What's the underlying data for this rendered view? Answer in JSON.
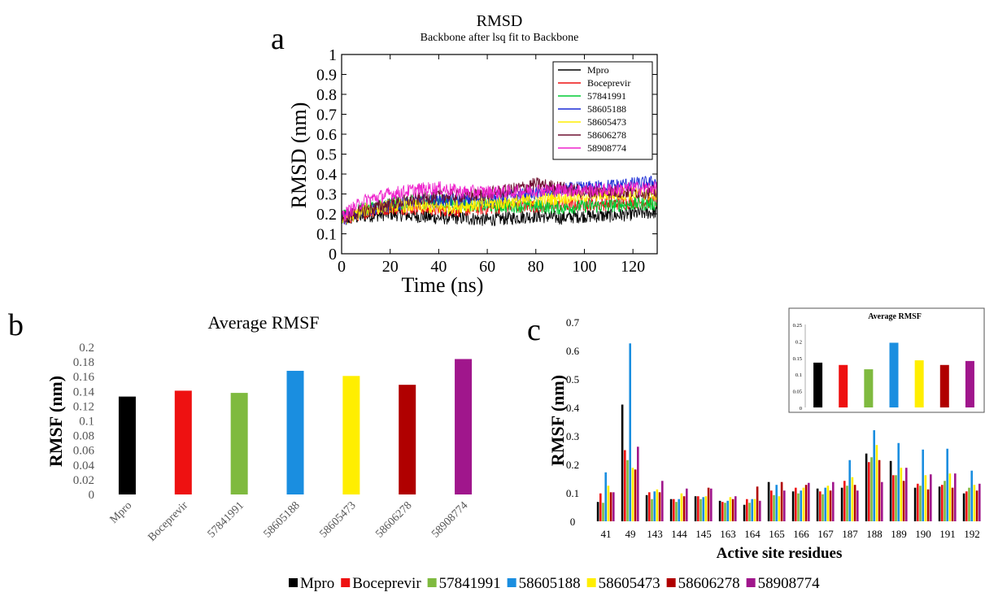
{
  "panels": {
    "a_label": "a",
    "b_label": "b",
    "c_label": "c"
  },
  "colors": {
    "Mpro": "#000000",
    "Boceprevir": "#ee1111",
    "57841991": "#7fba3f",
    "58605188": "#1a8ee0",
    "58605473": "#ffee00",
    "58606278": "#b00000",
    "58908774": "#a0168c"
  },
  "chart_data": [
    {
      "id": "a",
      "type": "line",
      "title": "RMSD",
      "subtitle": "Backbone after lsq fit to Backbone",
      "xlabel": "Time (ns)",
      "ylabel": "RMSD (nm)",
      "xlim": [
        0,
        130
      ],
      "ylim": [
        0,
        1
      ],
      "xticks": [
        "0",
        "20",
        "40",
        "60",
        "80",
        "100",
        "120"
      ],
      "yticks": [
        "0",
        "0.1",
        "0.2",
        "0.3",
        "0.4",
        "0.5",
        "0.6",
        "0.7",
        "0.8",
        "0.9",
        "1"
      ],
      "legend_position": "top-right",
      "grid": false,
      "series": [
        {
          "name": "Mpro",
          "color": "#000000",
          "line_color": "#000000",
          "x": [
            0,
            10,
            20,
            30,
            40,
            50,
            60,
            70,
            80,
            90,
            100,
            110,
            120,
            130
          ],
          "values": [
            0.17,
            0.19,
            0.2,
            0.19,
            0.18,
            0.18,
            0.17,
            0.18,
            0.19,
            0.18,
            0.19,
            0.19,
            0.2,
            0.21
          ]
        },
        {
          "name": "Boceprevir",
          "color": "#ee1111",
          "line_color": "#ee1111",
          "x": [
            0,
            10,
            20,
            30,
            40,
            50,
            60,
            70,
            80,
            90,
            100,
            110,
            120,
            130
          ],
          "values": [
            0.17,
            0.21,
            0.23,
            0.23,
            0.22,
            0.22,
            0.23,
            0.24,
            0.24,
            0.24,
            0.25,
            0.25,
            0.26,
            0.26
          ]
        },
        {
          "name": "57841991",
          "color": "#00cc33",
          "line_color": "#00cc33",
          "x": [
            0,
            10,
            20,
            30,
            40,
            50,
            60,
            70,
            80,
            90,
            100,
            110,
            120,
            130
          ],
          "values": [
            0.18,
            0.23,
            0.25,
            0.26,
            0.26,
            0.25,
            0.24,
            0.24,
            0.24,
            0.23,
            0.24,
            0.24,
            0.25,
            0.25
          ]
        },
        {
          "name": "58605188",
          "color": "#1a2bd6",
          "line_color": "#1a2bd6",
          "x": [
            0,
            10,
            20,
            30,
            40,
            50,
            60,
            70,
            80,
            90,
            100,
            110,
            120,
            130
          ],
          "values": [
            0.17,
            0.22,
            0.24,
            0.26,
            0.27,
            0.27,
            0.28,
            0.29,
            0.3,
            0.32,
            0.33,
            0.34,
            0.35,
            0.36
          ]
        },
        {
          "name": "58605473",
          "color": "#ffee00",
          "line_color": "#ffee00",
          "x": [
            0,
            10,
            20,
            30,
            40,
            50,
            60,
            70,
            80,
            90,
            100,
            110,
            120,
            130
          ],
          "values": [
            0.17,
            0.22,
            0.24,
            0.24,
            0.23,
            0.24,
            0.25,
            0.26,
            0.27,
            0.28,
            0.29,
            0.3,
            0.3,
            0.3
          ]
        },
        {
          "name": "58606278",
          "color": "#6e1030",
          "line_color": "#6e1030",
          "x": [
            0,
            10,
            20,
            30,
            40,
            50,
            60,
            70,
            80,
            90,
            100,
            110,
            120,
            130
          ],
          "values": [
            0.18,
            0.22,
            0.25,
            0.27,
            0.29,
            0.29,
            0.3,
            0.32,
            0.35,
            0.33,
            0.31,
            0.31,
            0.31,
            0.31
          ]
        },
        {
          "name": "58908774",
          "color": "#ee22cc",
          "line_color": "#ee22cc",
          "x": [
            0,
            10,
            20,
            30,
            40,
            50,
            60,
            70,
            80,
            90,
            100,
            110,
            120,
            130
          ],
          "values": [
            0.19,
            0.27,
            0.3,
            0.32,
            0.33,
            0.31,
            0.31,
            0.31,
            0.32,
            0.32,
            0.32,
            0.32,
            0.33,
            0.33
          ]
        }
      ]
    },
    {
      "id": "b",
      "type": "bar",
      "title": "Average RMSF",
      "xlabel": "",
      "ylabel": "RMSF (nm)",
      "ylim": [
        0,
        0.2
      ],
      "yticks": [
        "0",
        "0.02",
        "0.04",
        "0.06",
        "0.08",
        "0.1",
        "0.12",
        "0.14",
        "0.16",
        "0.18",
        "0.2"
      ],
      "categories": [
        "Mpro",
        "Boceprevir",
        "57841991",
        "58605188",
        "58605473",
        "58606278",
        "58908774"
      ],
      "values": [
        0.133,
        0.141,
        0.138,
        0.168,
        0.161,
        0.149,
        0.184
      ],
      "grid": false
    },
    {
      "id": "c",
      "type": "bar",
      "xlabel": "Active site residues",
      "ylabel": "RMSF (nm)",
      "ylim": [
        0,
        0.7
      ],
      "yticks": [
        "0",
        "0.1",
        "0.2",
        "0.3",
        "0.4",
        "0.5",
        "0.6",
        "0.7"
      ],
      "categories": [
        "41",
        "49",
        "143",
        "144",
        "145",
        "163",
        "164",
        "165",
        "166",
        "167",
        "187",
        "188",
        "189",
        "190",
        "191",
        "192"
      ],
      "series": [
        {
          "name": "Mpro",
          "values": [
            0.068,
            0.41,
            0.092,
            0.078,
            0.088,
            0.072,
            0.058,
            0.138,
            0.105,
            0.115,
            0.118,
            0.238,
            0.212,
            0.118,
            0.122,
            0.098
          ]
        },
        {
          "name": "Boceprevir",
          "values": [
            0.098,
            0.25,
            0.102,
            0.078,
            0.088,
            0.068,
            0.078,
            0.108,
            0.118,
            0.105,
            0.142,
            0.208,
            0.162,
            0.132,
            0.128,
            0.105
          ]
        },
        {
          "name": "57841991",
          "values": [
            0.065,
            0.215,
            0.078,
            0.068,
            0.078,
            0.065,
            0.065,
            0.092,
            0.098,
            0.095,
            0.125,
            0.225,
            0.162,
            0.125,
            0.142,
            0.118
          ]
        },
        {
          "name": "58605188",
          "values": [
            0.172,
            0.625,
            0.105,
            0.078,
            0.085,
            0.072,
            0.078,
            0.128,
            0.108,
            0.118,
            0.215,
            0.32,
            0.275,
            0.252,
            0.255,
            0.178
          ]
        },
        {
          "name": "58605473",
          "values": [
            0.125,
            0.188,
            0.112,
            0.098,
            0.088,
            0.085,
            0.078,
            0.088,
            0.118,
            0.125,
            0.155,
            0.268,
            0.188,
            0.162,
            0.168,
            0.128
          ]
        },
        {
          "name": "58606278",
          "values": [
            0.102,
            0.182,
            0.102,
            0.088,
            0.118,
            0.078,
            0.122,
            0.138,
            0.128,
            0.108,
            0.128,
            0.215,
            0.142,
            0.112,
            0.118,
            0.108
          ]
        },
        {
          "name": "58908774",
          "values": [
            0.102,
            0.262,
            0.142,
            0.115,
            0.115,
            0.088,
            0.072,
            0.108,
            0.135,
            0.138,
            0.108,
            0.138,
            0.188,
            0.165,
            0.168,
            0.132
          ]
        }
      ],
      "grid": false
    },
    {
      "id": "c_inset",
      "type": "bar",
      "title": "Average RMSF",
      "ylim": [
        0,
        0.25
      ],
      "yticks": [
        "0",
        "0.05",
        "0.1",
        "0.15",
        "0.2",
        "0.25"
      ],
      "categories": [
        "Mpro",
        "Boceprevir",
        "57841991",
        "58605188",
        "58605473",
        "58606278",
        "58908774"
      ],
      "values": [
        0.135,
        0.128,
        0.115,
        0.195,
        0.142,
        0.128,
        0.14
      ],
      "grid": false
    }
  ],
  "shared_legend": {
    "entries": [
      "Mpro",
      "Boceprevir",
      "57841991",
      "58605188",
      "58605473",
      "58606278",
      "58908774"
    ]
  }
}
